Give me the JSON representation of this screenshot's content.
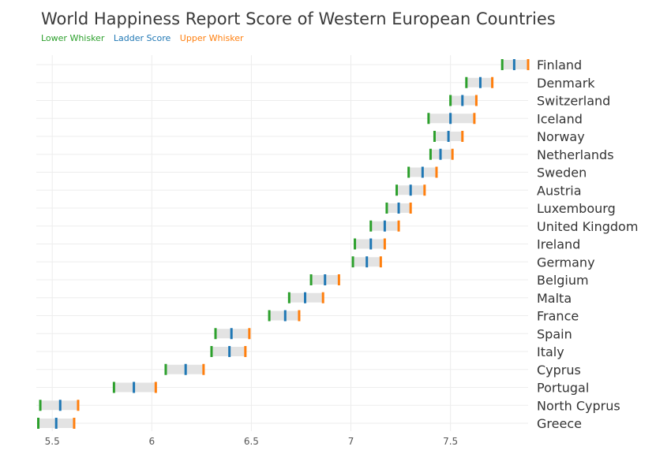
{
  "chart_data": {
    "type": "box",
    "title": "World Happiness Report Score of Western European Countries",
    "legend": [
      {
        "label": "Lower Whisker",
        "color": "#2ca02c"
      },
      {
        "label": "Ladder Score",
        "color": "#1f77b4"
      },
      {
        "label": "Upper Whisker",
        "color": "#ff7f0e"
      }
    ],
    "xlim": [
      5.42,
      7.89
    ],
    "xticks": [
      5.5,
      6,
      6.5,
      7,
      7.5
    ],
    "xtick_labels": [
      "5.5",
      "6",
      "6.5",
      "7",
      "7.5"
    ],
    "categories": [
      "Finland",
      "Denmark",
      "Switzerland",
      "Iceland",
      "Norway",
      "Netherlands",
      "Sweden",
      "Austria",
      "Luxembourg",
      "United Kingdom",
      "Ireland",
      "Germany",
      "Belgium",
      "Malta",
      "France",
      "Spain",
      "Italy",
      "Cyprus",
      "Portugal",
      "North Cyprus",
      "Greece"
    ],
    "series": [
      {
        "name": "Lower Whisker",
        "values": [
          7.76,
          7.58,
          7.5,
          7.39,
          7.42,
          7.4,
          7.29,
          7.23,
          7.18,
          7.1,
          7.02,
          7.01,
          6.8,
          6.69,
          6.59,
          6.32,
          6.3,
          6.07,
          5.81,
          5.44,
          5.43
        ]
      },
      {
        "name": "Ladder Score",
        "values": [
          7.82,
          7.65,
          7.56,
          7.5,
          7.49,
          7.45,
          7.36,
          7.3,
          7.24,
          7.17,
          7.1,
          7.08,
          6.87,
          6.77,
          6.67,
          6.4,
          6.39,
          6.17,
          5.91,
          5.54,
          5.52
        ]
      },
      {
        "name": "Upper Whisker",
        "values": [
          7.89,
          7.71,
          7.63,
          7.62,
          7.56,
          7.51,
          7.43,
          7.37,
          7.3,
          7.24,
          7.17,
          7.15,
          6.94,
          6.86,
          6.74,
          6.49,
          6.47,
          6.26,
          6.02,
          5.63,
          5.61
        ]
      }
    ]
  }
}
